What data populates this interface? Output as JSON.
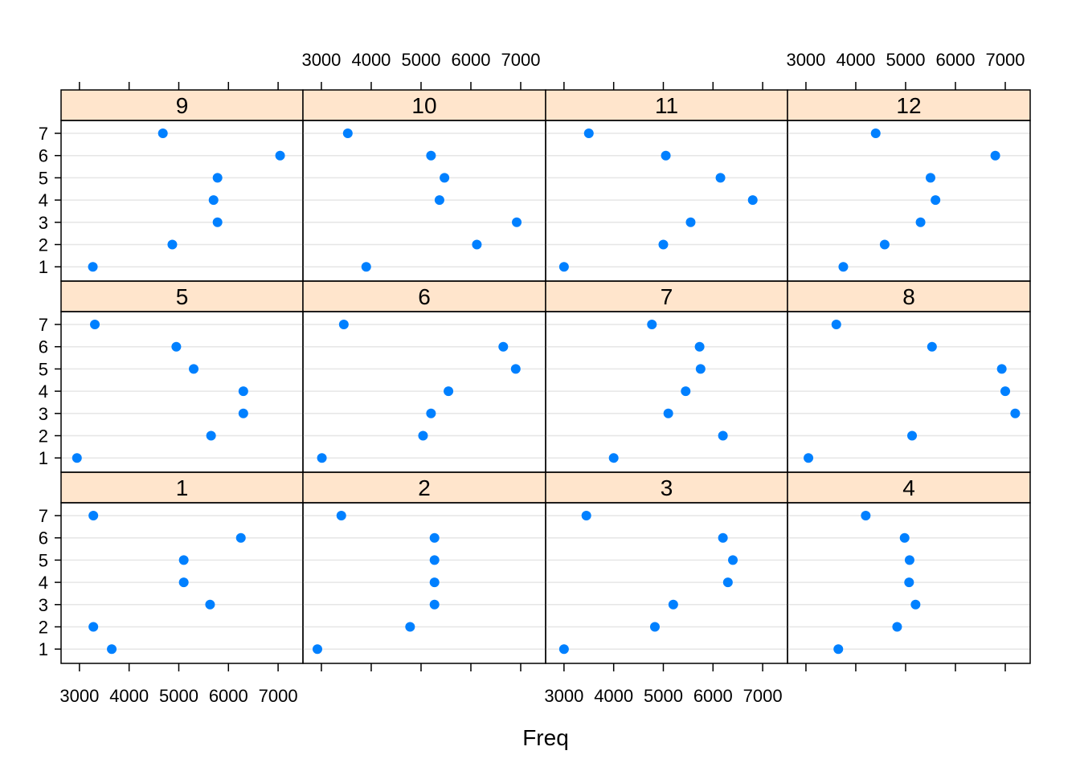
{
  "chart_data": {
    "type": "scatter",
    "title": "",
    "xlabel": "Freq",
    "ylabel": "",
    "xlim": [
      2630,
      7500
    ],
    "x_ticks": [
      3000,
      4000,
      5000,
      6000,
      7000
    ],
    "y_categories": [
      "1",
      "2",
      "3",
      "4",
      "5",
      "6",
      "7"
    ],
    "grid": "horizontal",
    "layout": {
      "columns": 4,
      "rows": 3
    },
    "colors": {
      "point": "#0080ff",
      "strip_fill": "#ffe5cc",
      "grid": "#e6e6e6",
      "frame": "#000000"
    },
    "panels": [
      {
        "label": "1",
        "values": [
          3650,
          3280,
          5630,
          5100,
          5100,
          6250,
          3280
        ]
      },
      {
        "label": "2",
        "values": [
          2920,
          4780,
          5270,
          5270,
          5270,
          5270,
          3400
        ]
      },
      {
        "label": "3",
        "values": [
          3000,
          4830,
          5200,
          6300,
          6400,
          6200,
          3450
        ]
      },
      {
        "label": "4",
        "values": [
          3650,
          4830,
          5200,
          5070,
          5080,
          4980,
          4200
        ]
      },
      {
        "label": "5",
        "values": [
          2950,
          5650,
          6300,
          6300,
          5300,
          4950,
          3310
        ]
      },
      {
        "label": "6",
        "values": [
          3010,
          5040,
          5200,
          5550,
          6900,
          6650,
          3450
        ]
      },
      {
        "label": "7",
        "values": [
          4000,
          6200,
          5100,
          5450,
          5750,
          5730,
          4770
        ]
      },
      {
        "label": "8",
        "values": [
          3050,
          5130,
          7200,
          7000,
          6930,
          5530,
          3610
        ]
      },
      {
        "label": "9",
        "values": [
          3270,
          4870,
          5780,
          5700,
          5780,
          7040,
          4680
        ]
      },
      {
        "label": "10",
        "values": [
          3900,
          6120,
          6920,
          5370,
          5470,
          5200,
          3530
        ]
      },
      {
        "label": "11",
        "values": [
          3000,
          5000,
          5550,
          6800,
          6150,
          5050,
          3500
        ]
      },
      {
        "label": "12",
        "values": [
          3750,
          4580,
          5300,
          5600,
          5500,
          6800,
          4400
        ]
      }
    ]
  }
}
